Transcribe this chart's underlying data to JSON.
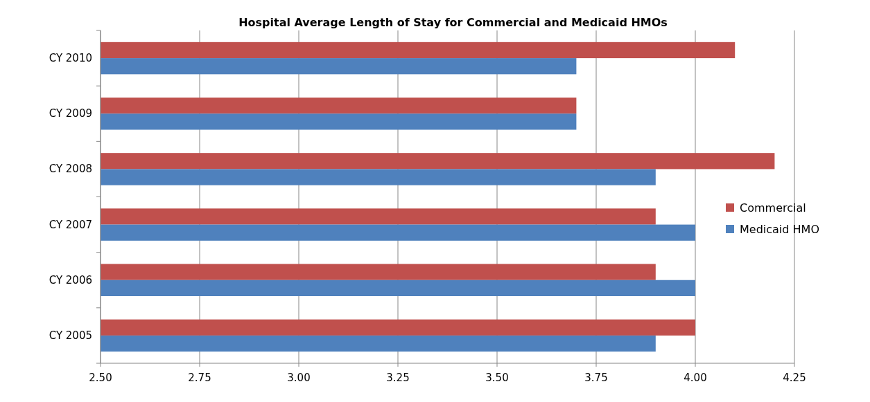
{
  "chart_data": {
    "type": "bar",
    "orientation": "horizontal",
    "title": "Hospital Average Length of Stay for Commercial and Medicaid HMOs",
    "categories": [
      "CY 2010",
      "CY 2009",
      "CY 2008",
      "CY 2007",
      "CY 2006",
      "CY 2005"
    ],
    "series": [
      {
        "name": "Commercial",
        "color": "#c0504d",
        "values": [
          4.1,
          3.7,
          4.2,
          3.9,
          3.9,
          4.0
        ]
      },
      {
        "name": "Medicaid HMO",
        "color": "#4f81bd",
        "values": [
          3.7,
          3.7,
          3.9,
          4.0,
          4.0,
          3.9
        ]
      }
    ],
    "xlim": [
      2.5,
      4.25
    ],
    "xticks": [
      {
        "value": 2.5,
        "label": "2.50"
      },
      {
        "value": 2.75,
        "label": "2.75"
      },
      {
        "value": 3,
        "label": "3.00"
      },
      {
        "value": 3.25,
        "label": "3.25"
      },
      {
        "value": 3.5,
        "label": "3.50"
      },
      {
        "value": 3.75,
        "label": "3.75"
      },
      {
        "value": 4,
        "label": "4.00"
      },
      {
        "value": 4.25,
        "label": "4.25"
      }
    ],
    "grid": "x",
    "legend": "right"
  }
}
